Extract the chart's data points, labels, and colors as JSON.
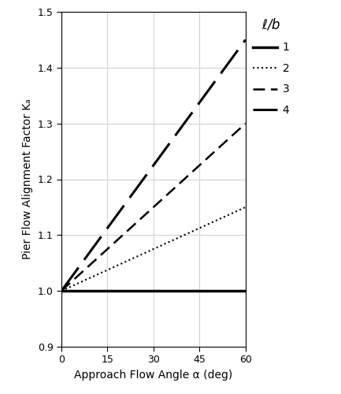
{
  "title": "",
  "xlabel": "Approach Flow Angle α (deg)",
  "ylabel": "Pier Flow Alignment Factor Kₐ",
  "xlim": [
    0,
    60
  ],
  "ylim": [
    0.9,
    1.5
  ],
  "xticks": [
    0,
    15,
    30,
    45,
    60
  ],
  "yticks": [
    0.9,
    1.0,
    1.1,
    1.2,
    1.3,
    1.4,
    1.5
  ],
  "lb_ratios": [
    1,
    2,
    3,
    4
  ],
  "Ka_formula_A": 0.225,
  "legend_title": "ℓ/b",
  "legend_labels": [
    "1",
    "2",
    "3",
    "4"
  ],
  "figsize": [
    4.33,
    5.0
  ],
  "dpi": 100,
  "background_color": "white"
}
